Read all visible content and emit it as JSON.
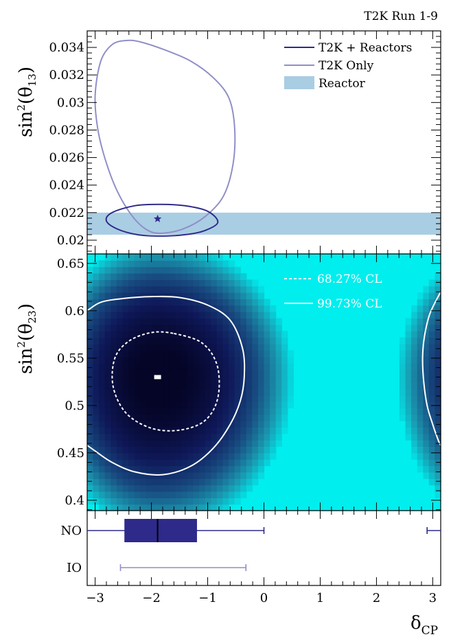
{
  "header": {
    "run_label": "T2K Run 1-9"
  },
  "chart_data": [
    {
      "panel": "top",
      "type": "contour",
      "ylabel": "sin²(θ13)",
      "xlim": [
        -3.1416,
        3.1416
      ],
      "ylim": [
        0.019,
        0.0352
      ],
      "yticks": [
        "0.02",
        "0.022",
        "0.024",
        "0.026",
        "0.028",
        "0.03",
        "0.032",
        "0.034"
      ],
      "series": [
        {
          "name": "T2K + Reactors",
          "color": "#2e2a8a",
          "contour": [
            [
              -1.85,
              0.0203
            ],
            [
              -1.4,
              0.0204
            ],
            [
              -1.05,
              0.0207
            ],
            [
              -0.82,
              0.0213
            ],
            [
              -1.0,
              0.0221
            ],
            [
              -1.4,
              0.0225
            ],
            [
              -1.85,
              0.0226
            ],
            [
              -2.3,
              0.0225
            ],
            [
              -2.7,
              0.022
            ],
            [
              -2.8,
              0.0214
            ],
            [
              -2.6,
              0.0208
            ],
            [
              -2.25,
              0.0204
            ],
            [
              -1.85,
              0.0203
            ]
          ],
          "best_fit": [
            -1.89,
            0.02155
          ]
        },
        {
          "name": "T2K Only",
          "color": "#8f8fc7",
          "contour": [
            [
              -1.85,
              0.0205
            ],
            [
              -1.45,
              0.0208
            ],
            [
              -1.05,
              0.0217
            ],
            [
              -0.72,
              0.0232
            ],
            [
              -0.55,
              0.0255
            ],
            [
              -0.52,
              0.0281
            ],
            [
              -0.62,
              0.0303
            ],
            [
              -0.9,
              0.0318
            ],
            [
              -1.3,
              0.033
            ],
            [
              -1.75,
              0.0338
            ],
            [
              -2.2,
              0.0344
            ],
            [
              -2.45,
              0.0345
            ],
            [
              -2.7,
              0.0342
            ],
            [
              -2.9,
              0.033
            ],
            [
              -3.0,
              0.0305
            ],
            [
              -2.95,
              0.028
            ],
            [
              -2.8,
              0.0256
            ],
            [
              -2.6,
              0.0235
            ],
            [
              -2.35,
              0.0218
            ],
            [
              -2.1,
              0.0208
            ],
            [
              -1.85,
              0.0205
            ]
          ]
        }
      ],
      "band": {
        "name": "Reactor",
        "color": "#a9cde3",
        "ymin": 0.0204,
        "ymax": 0.022
      }
    },
    {
      "panel": "middle",
      "type": "heatmap",
      "ylabel": "sin²(θ23)",
      "xlim": [
        -3.1416,
        3.1416
      ],
      "ylim": [
        0.389,
        0.66
      ],
      "yticks": [
        "0.4",
        "0.45",
        "0.5",
        "0.55",
        "0.6",
        "0.65"
      ],
      "background": "#00eeee",
      "best_fit": [
        -1.89,
        0.53
      ],
      "contours": [
        {
          "name": "68.27% CL",
          "style": "dashed",
          "contour": [
            [
              -1.6,
              0.576
            ],
            [
              -1.1,
              0.566
            ],
            [
              -0.83,
              0.542
            ],
            [
              -0.82,
              0.508
            ],
            [
              -1.05,
              0.484
            ],
            [
              -1.5,
              0.474
            ],
            [
              -2.0,
              0.476
            ],
            [
              -2.45,
              0.492
            ],
            [
              -2.68,
              0.52
            ],
            [
              -2.65,
              0.55
            ],
            [
              -2.4,
              0.568
            ],
            [
              -2.0,
              0.577
            ],
            [
              -1.6,
              0.576
            ]
          ]
        },
        {
          "name": "99.73% CL",
          "style": "solid",
          "contour": [
            [
              -3.1416,
              0.6
            ],
            [
              -2.9,
              0.609
            ],
            [
              -2.5,
              0.613
            ],
            [
              -2.0,
              0.615
            ],
            [
              -1.5,
              0.614
            ],
            [
              -1.0,
              0.606
            ],
            [
              -0.6,
              0.59
            ],
            [
              -0.38,
              0.56
            ],
            [
              -0.35,
              0.53
            ],
            [
              -0.42,
              0.505
            ],
            [
              -0.6,
              0.48
            ],
            [
              -0.9,
              0.455
            ],
            [
              -1.3,
              0.436
            ],
            [
              -1.8,
              0.427
            ],
            [
              -2.3,
              0.43
            ],
            [
              -2.7,
              0.44
            ],
            [
              -3.0,
              0.452
            ],
            [
              -3.1416,
              0.458
            ]
          ]
        },
        {
          "name": "",
          "style": "solid",
          "contour": [
            [
              3.1416,
              0.62
            ],
            [
              2.95,
              0.597
            ],
            [
              2.85,
              0.572
            ],
            [
              2.82,
              0.55
            ],
            [
              2.84,
              0.525
            ],
            [
              2.9,
              0.5
            ],
            [
              3.0,
              0.48
            ],
            [
              3.1,
              0.463
            ],
            [
              3.1416,
              0.458
            ]
          ]
        }
      ]
    },
    {
      "panel": "bottom",
      "type": "box",
      "xlabel": "δCP",
      "xlim": [
        -3.1416,
        3.1416
      ],
      "xticks": [
        "−3",
        "−2",
        "−1",
        "0",
        "1",
        "2",
        "3"
      ],
      "rows": [
        {
          "label": "NO",
          "color": "#2e2a8a",
          "whisker_low": -3.1416,
          "q1": -2.48,
          "median": -1.89,
          "q3": -1.19,
          "whisker_high": 0.0,
          "extra_segment": [
            2.9,
            3.1416
          ]
        },
        {
          "label": "IO",
          "color": "#8f8fc7",
          "whisker_low": -2.55,
          "whisker_high": -0.32
        }
      ]
    }
  ]
}
